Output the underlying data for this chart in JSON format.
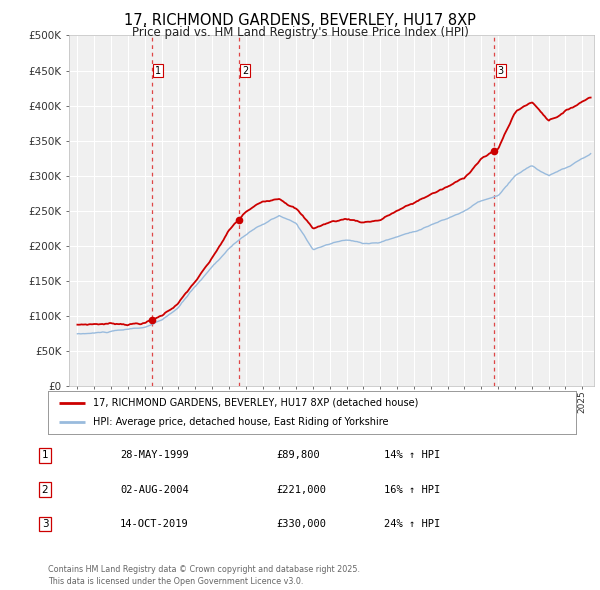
{
  "title": "17, RICHMOND GARDENS, BEVERLEY, HU17 8XP",
  "subtitle": "Price paid vs. HM Land Registry's House Price Index (HPI)",
  "title_fontsize": 10.5,
  "subtitle_fontsize": 8.5,
  "background_color": "#ffffff",
  "plot_bg_color": "#f0f0f0",
  "grid_color": "#ffffff",
  "ylim": [
    0,
    500000
  ],
  "yticks": [
    0,
    50000,
    100000,
    150000,
    200000,
    250000,
    300000,
    350000,
    400000,
    450000,
    500000
  ],
  "ytick_labels": [
    "£0",
    "£50K",
    "£100K",
    "£150K",
    "£200K",
    "£250K",
    "£300K",
    "£350K",
    "£400K",
    "£450K",
    "£500K"
  ],
  "xlim_start": 1994.5,
  "xlim_end": 2025.7,
  "sale_color": "#cc0000",
  "hpi_color": "#99bbdd",
  "vline_color": "#dd3333",
  "sales": [
    {
      "year": 1999.41,
      "price": 89800,
      "label": "1"
    },
    {
      "year": 2004.58,
      "price": 221000,
      "label": "2"
    },
    {
      "year": 2019.78,
      "price": 330000,
      "label": "3"
    }
  ],
  "transactions": [
    {
      "label": "1",
      "date": "28-MAY-1999",
      "price": "£89,800",
      "hpi": "14% ↑ HPI"
    },
    {
      "label": "2",
      "date": "02-AUG-2004",
      "price": "£221,000",
      "hpi": "16% ↑ HPI"
    },
    {
      "label": "3",
      "date": "14-OCT-2019",
      "price": "£330,000",
      "hpi": "24% ↑ HPI"
    }
  ],
  "legend_line1": "17, RICHMOND GARDENS, BEVERLEY, HU17 8XP (detached house)",
  "legend_line2": "HPI: Average price, detached house, East Riding of Yorkshire",
  "footer": "Contains HM Land Registry data © Crown copyright and database right 2025.\nThis data is licensed under the Open Government Licence v3.0."
}
